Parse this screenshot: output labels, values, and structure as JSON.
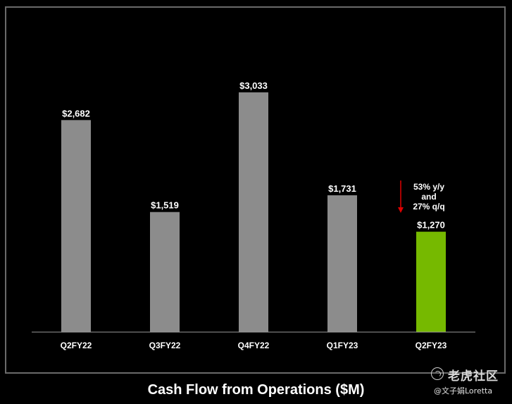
{
  "chart_data": {
    "type": "bar",
    "title": "Cash Flow from Operations ($M)",
    "categories": [
      "Q2FY22",
      "Q3FY22",
      "Q4FY22",
      "Q1FY23",
      "Q2FY23"
    ],
    "values": [
      2682,
      1519,
      3033,
      1731,
      1270
    ],
    "value_labels": [
      "$2,682",
      "$1,519",
      "$3,033",
      "$1,731",
      "$1,270"
    ],
    "bar_colors": [
      "#8c8c8c",
      "#8c8c8c",
      "#8c8c8c",
      "#8c8c8c",
      "#76b900"
    ],
    "ylim": [
      0,
      3033
    ],
    "grid": false,
    "annotation": {
      "lines": [
        "53% y/y",
        "and",
        "27% q/q"
      ],
      "arrow_color": "#e00000",
      "direction": "down",
      "category": "Q2FY23"
    }
  },
  "watermark": {
    "brand": "老虎社区",
    "author": "@文子娟Loretta",
    "logo_icon": "tiger-community-logo-icon"
  }
}
